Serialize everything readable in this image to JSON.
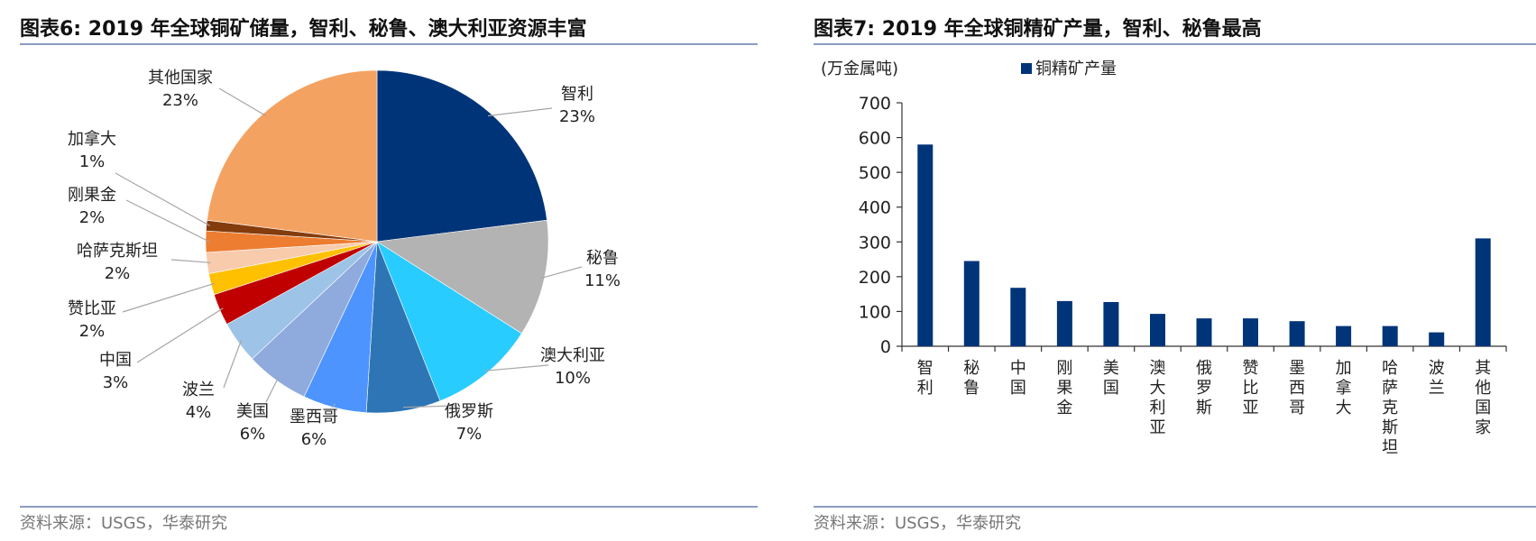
{
  "figures": [
    {
      "title": "图表6:  2019 年全球铜矿储量，智利、秘鲁、澳大利亚资源丰富",
      "source": "资料来源：USGS，华泰研究"
    },
    {
      "title": "图表7:  2019 年全球铜精矿产量，智利、秘鲁最高",
      "source": "资料来源：USGS，华泰研究"
    }
  ],
  "chart_data": [
    {
      "type": "pie",
      "title": "2019 年全球铜矿储量，智利、秘鲁、澳大利亚资源丰富",
      "slices": [
        {
          "label": "智利",
          "value": 23,
          "display": "23%",
          "color": "#003478"
        },
        {
          "label": "秘鲁",
          "value": 11,
          "display": "11%",
          "color": "#b3b3b3"
        },
        {
          "label": "澳大利亚",
          "value": 10,
          "display": "10%",
          "color": "#29ccff"
        },
        {
          "label": "俄罗斯",
          "value": 7,
          "display": "7%",
          "color": "#2e75b6"
        },
        {
          "label": "墨西哥",
          "value": 6,
          "display": "6%",
          "color": "#4d94ff"
        },
        {
          "label": "美国",
          "value": 6,
          "display": "6%",
          "color": "#8faadc"
        },
        {
          "label": "波兰",
          "value": 4,
          "display": "4%",
          "color": "#9dc3e6"
        },
        {
          "label": "中国",
          "value": 3,
          "display": "3%",
          "color": "#c00000"
        },
        {
          "label": "赞比亚",
          "value": 2,
          "display": "2%",
          "color": "#ffc000"
        },
        {
          "label": "哈萨克斯坦",
          "value": 2,
          "display": "2%",
          "color": "#f8cbad"
        },
        {
          "label": "刚果金",
          "value": 2,
          "display": "2%",
          "color": "#ed7d31"
        },
        {
          "label": "加拿大",
          "value": 1,
          "display": "1%",
          "color": "#843c0c"
        },
        {
          "label": "其他国家",
          "value": 23,
          "display": "23%",
          "color": "#f4a262"
        }
      ]
    },
    {
      "type": "bar",
      "title": "2019 年全球铜精矿产量，智利、秘鲁最高",
      "unit_label": "(万金属吨)",
      "series": [
        {
          "name": "铜精矿产量",
          "color": "#003478",
          "values": [
            580,
            245,
            168,
            130,
            127,
            93,
            80,
            80,
            72,
            58,
            58,
            40,
            310
          ]
        }
      ],
      "categories": [
        "智利",
        "秘鲁",
        "中国",
        "刚果金",
        "美国",
        "澳大利亚",
        "俄罗斯",
        "赞比亚",
        "墨西哥",
        "加拿大",
        "哈萨克斯坦",
        "波兰",
        "其他国家"
      ],
      "ylim": [
        0,
        700
      ],
      "yticks": [
        0,
        100,
        200,
        300,
        400,
        500,
        600,
        700
      ],
      "legend_position": "top"
    }
  ]
}
